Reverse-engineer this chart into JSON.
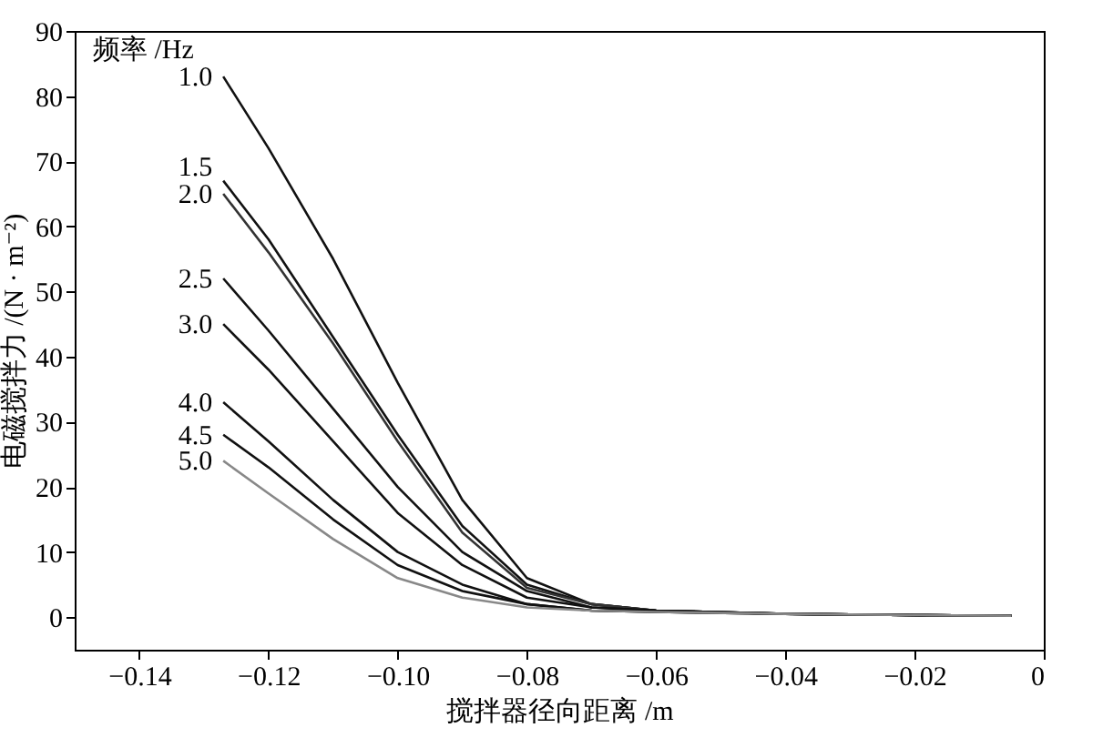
{
  "chart_data": {
    "type": "line",
    "xlabel": "搅拌器径向距离 /m",
    "ylabel": "电磁搅拌力 /(N · m⁻²)",
    "legend_title": "频率 /Hz",
    "x": [
      -0.127,
      -0.12,
      -0.11,
      -0.1,
      -0.09,
      -0.08,
      -0.07,
      -0.06,
      -0.04,
      -0.02,
      -0.005
    ],
    "xlim": [
      -0.15,
      0
    ],
    "xticks": [
      {
        "value": -0.14,
        "label": "−0.14"
      },
      {
        "value": -0.12,
        "label": "−0.12"
      },
      {
        "value": -0.1,
        "label": "−0.10"
      },
      {
        "value": -0.08,
        "label": "−0.08"
      },
      {
        "value": -0.06,
        "label": "−0.06"
      },
      {
        "value": -0.04,
        "label": "−0.04"
      },
      {
        "value": -0.02,
        "label": "−0.02"
      },
      {
        "value": 0,
        "label": "0"
      }
    ],
    "ylim": [
      -5,
      90
    ],
    "yticks": [
      0,
      10,
      20,
      30,
      40,
      50,
      60,
      70,
      80,
      90
    ],
    "series": [
      {
        "name": "1.0",
        "color": "#111111",
        "values": [
          83,
          72,
          55,
          36,
          18,
          6,
          2,
          1,
          0.5,
          0.3,
          0.2
        ]
      },
      {
        "name": "1.5",
        "color": "#111111",
        "values": [
          67,
          58,
          43,
          28,
          14,
          5,
          2,
          1,
          0.5,
          0.3,
          0.2
        ]
      },
      {
        "name": "2.0",
        "color": "#333333",
        "values": [
          65,
          56,
          42,
          27,
          13,
          4.5,
          2,
          1,
          0.5,
          0.3,
          0.2
        ]
      },
      {
        "name": "2.5",
        "color": "#111111",
        "values": [
          52,
          44,
          32,
          20,
          10,
          4,
          1.5,
          1,
          0.5,
          0.3,
          0.2
        ]
      },
      {
        "name": "3.0",
        "color": "#111111",
        "values": [
          45,
          38,
          27,
          16,
          8,
          3,
          1.5,
          1,
          0.5,
          0.3,
          0.2
        ]
      },
      {
        "name": "4.0",
        "color": "#111111",
        "values": [
          33,
          27,
          18,
          10,
          5,
          2,
          1,
          0.8,
          0.5,
          0.3,
          0.2
        ]
      },
      {
        "name": "4.5",
        "color": "#111111",
        "values": [
          28,
          23,
          15,
          8,
          4,
          2,
          1,
          0.8,
          0.5,
          0.3,
          0.2
        ]
      },
      {
        "name": "5.0",
        "color": "#888888",
        "values": [
          24,
          19,
          12,
          6,
          3,
          1.5,
          1,
          0.8,
          0.5,
          0.3,
          0.2
        ]
      }
    ]
  }
}
